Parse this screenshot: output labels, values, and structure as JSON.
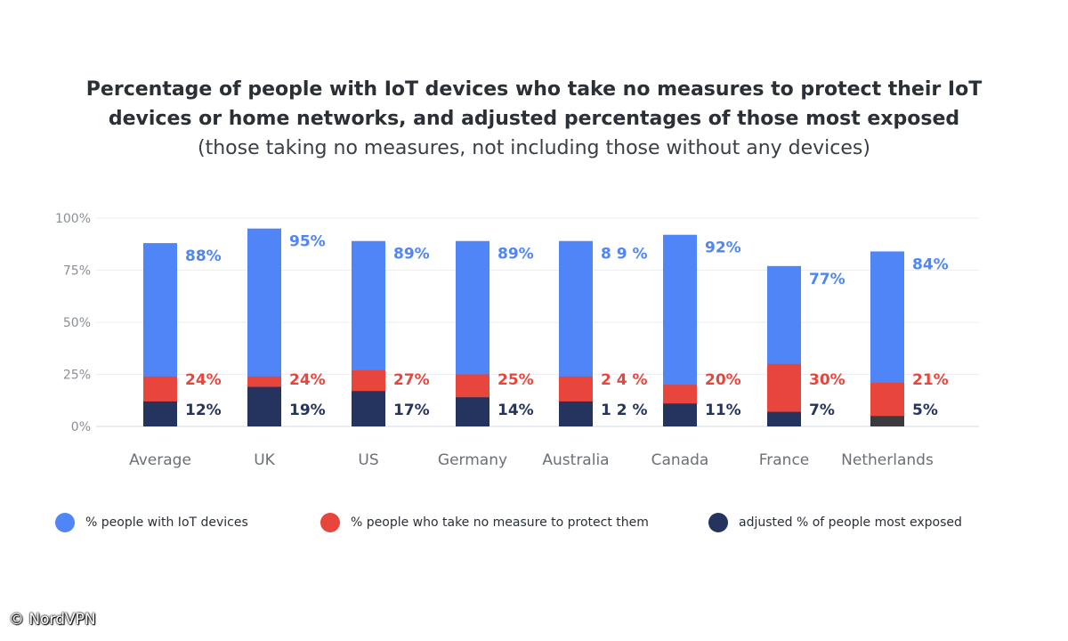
{
  "chart_data": {
    "type": "bar",
    "stacked": false,
    "title_lines": [
      "Percentage of people with IoT devices who take no measures to protect their IoT",
      "devices or home networks, and adjusted percentages of those most exposed"
    ],
    "subtitle": "(those taking no measures, not including those without any devices)",
    "categories": [
      "Average",
      "UK",
      "US",
      "Germany",
      "Australia",
      "Canada",
      "France",
      "Netherlands"
    ],
    "series": [
      {
        "name": "% people with IoT  devices",
        "color": "#4f85f6",
        "values": [
          88,
          95,
          89,
          89,
          89,
          92,
          77,
          84
        ],
        "labels": [
          "88%",
          "95%",
          "89%",
          "89%",
          "8 9 %",
          "92%",
          "77%",
          "84%"
        ]
      },
      {
        "name": "% people who take no measure to protect them",
        "color": "#e8453c",
        "values": [
          24,
          24,
          27,
          25,
          24,
          20,
          30,
          21
        ],
        "labels": [
          "24%",
          "24%",
          "27%",
          "25%",
          "2 4 %",
          "20%",
          "30%",
          "21%"
        ]
      },
      {
        "name": "adjusted % of people most exposed",
        "color": "#25345e",
        "values": [
          12,
          19,
          17,
          14,
          12,
          11,
          7,
          5
        ],
        "labels": [
          "12%",
          "19%",
          "17%",
          "14%",
          "1 2 %",
          "11%",
          "7%",
          "5%"
        ]
      }
    ],
    "y_ticks": [
      "0%",
      "25%",
      "50%",
      "75%",
      "100%"
    ],
    "ylim": [
      0,
      100
    ],
    "grid": true,
    "legend_position": "bottom"
  },
  "watermark": "© NordVPN"
}
